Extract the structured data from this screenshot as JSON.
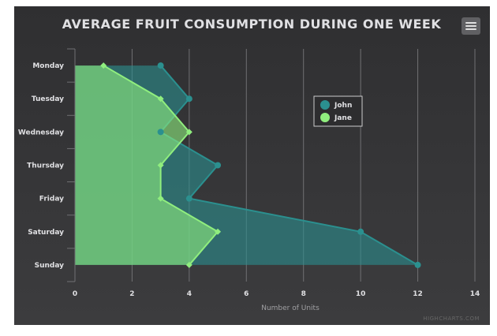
{
  "chart_data": {
    "type": "area",
    "inverted": true,
    "title": "AVERAGE FRUIT CONSUMPTION DURING ONE WEEK",
    "categories": [
      "Monday",
      "Tuesday",
      "Wednesday",
      "Thursday",
      "Friday",
      "Saturday",
      "Sunday"
    ],
    "series": [
      {
        "name": "John",
        "values": [
          3,
          4,
          3,
          5,
          4,
          10,
          12
        ],
        "color": "#2b908f",
        "marker": "circle"
      },
      {
        "name": "Jane",
        "values": [
          1,
          3,
          4,
          3,
          3,
          5,
          4
        ],
        "color": "#90ee7e",
        "marker": "diamond"
      }
    ],
    "ylabel": "Number of Units",
    "xlabel": "",
    "ylim": [
      0,
      14
    ],
    "yticks": [
      0,
      2,
      4,
      6,
      8,
      10,
      12,
      14
    ],
    "grid": true,
    "legend": {
      "placement": "inside-top-right"
    }
  },
  "credits": "HIGHCHARTS.COM",
  "menu_icon": "hamburger-menu-icon",
  "colors": {
    "background_top": "#2f2f31",
    "background_bottom": "#3c3c3e",
    "grid": "#707073",
    "text": "#e0e0e3"
  }
}
